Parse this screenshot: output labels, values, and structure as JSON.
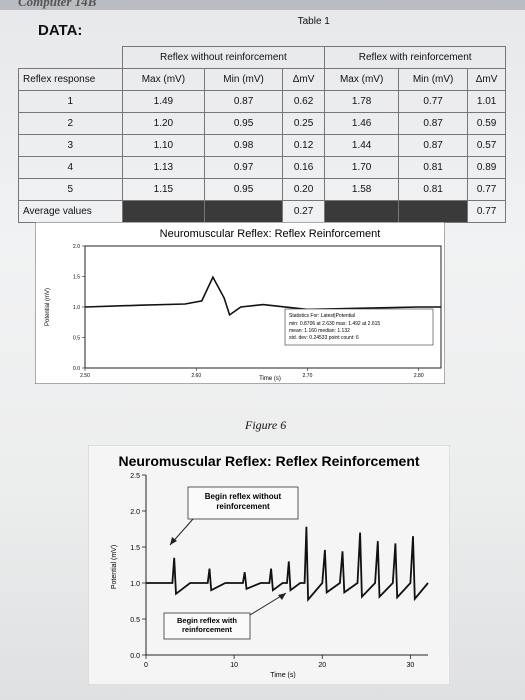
{
  "header": {
    "partial_title": "Computer 14B"
  },
  "data_label": "DATA:",
  "table": {
    "caption": "Table 1",
    "group_without": "Reflex without reinforcement",
    "group_with": "Reflex with reinforcement",
    "col_reflex": "Reflex response",
    "col_max": "Max (mV)",
    "col_min": "Min (mV)",
    "col_delta": "ΔmV",
    "rows": [
      {
        "n": "1",
        "wo_max": "1.49",
        "wo_min": "0.87",
        "wo_d": "0.62",
        "w_max": "1.78",
        "w_min": "0.77",
        "w_d": "1.01"
      },
      {
        "n": "2",
        "wo_max": "1.20",
        "wo_min": "0.95",
        "wo_d": "0.25",
        "w_max": "1.46",
        "w_min": "0.87",
        "w_d": "0.59"
      },
      {
        "n": "3",
        "wo_max": "1.10",
        "wo_min": "0.98",
        "wo_d": "0.12",
        "w_max": "1.44",
        "w_min": "0.87",
        "w_d": "0.57"
      },
      {
        "n": "4",
        "wo_max": "1.13",
        "wo_min": "0.97",
        "wo_d": "0.16",
        "w_max": "1.70",
        "w_min": "0.81",
        "w_d": "0.89"
      },
      {
        "n": "5",
        "wo_max": "1.15",
        "wo_min": "0.95",
        "wo_d": "0.20",
        "w_max": "1.58",
        "w_min": "0.81",
        "w_d": "0.77"
      }
    ],
    "avg_label": "Average values",
    "avg_wo_d": "0.27",
    "avg_w_d": "0.77"
  },
  "chart1": {
    "title": "Neuromuscular Reflex: Reflex Reinforcement",
    "ylabel": "Potential (mV)",
    "xlabel": "Time (s)",
    "yticks": [
      "0.0",
      "0.5",
      "1.0",
      "1.5",
      "2.0"
    ],
    "xticks": [
      "2.50",
      "2.60",
      "2.70",
      "2.80"
    ],
    "stats_title": "Statistics For: Latest|Potential",
    "stats_line1": "min: 0.8706 at 2.630  max: 1.492 at 2.615",
    "stats_line2": "mean: 1.160  median: 1.132",
    "stats_line3": "std. dev: 0.24533  point count: 6"
  },
  "figure_caption": "Figure 6",
  "chart2": {
    "title": "Neuromuscular Reflex: Reflex Reinforcement",
    "ylabel": "Potential (mV)",
    "xlabel": "Time (s)",
    "yticks": [
      "0.0",
      "0.5",
      "1.0",
      "1.5",
      "2.0",
      "2.5"
    ],
    "xticks": [
      "0",
      "10",
      "20",
      "30"
    ],
    "annot_without": "Begin reflex without reinforcement",
    "annot_with": "Begin reflex with reinforcement"
  },
  "chart_data": [
    {
      "type": "line",
      "title": "Neuromuscular Reflex: Reflex Reinforcement",
      "xlabel": "Time (s)",
      "ylabel": "Potential (mV)",
      "xlim": [
        2.5,
        2.82
      ],
      "ylim": [
        0.0,
        2.0
      ],
      "series": [
        {
          "x": [
            2.5,
            2.55,
            2.59,
            2.605,
            2.615,
            2.625,
            2.63,
            2.64,
            2.66,
            2.7,
            2.75,
            2.8,
            2.82
          ],
          "y": [
            1.0,
            1.03,
            1.05,
            1.1,
            1.49,
            1.15,
            0.87,
            1.0,
            1.04,
            0.96,
            0.98,
            1.0,
            1.0
          ]
        }
      ]
    },
    {
      "type": "line",
      "title": "Neuromuscular Reflex: Reflex Reinforcement",
      "xlabel": "Time (s)",
      "ylabel": "Potential (mV)",
      "xlim": [
        0,
        32
      ],
      "ylim": [
        0.0,
        2.5
      ],
      "series": [
        {
          "x": [
            0,
            2,
            3,
            3.2,
            3.4,
            5,
            7,
            7.2,
            7.4,
            9,
            11,
            11.2,
            11.4,
            13,
            14,
            14.2,
            14.4,
            15.5,
            16,
            16.2,
            16.4,
            17.5,
            18,
            18.2,
            18.4,
            20,
            20.3,
            20.5,
            22,
            22.3,
            22.5,
            24,
            24.3,
            24.5,
            26,
            26.3,
            26.5,
            28,
            28.3,
            28.5,
            30,
            30.3,
            30.5,
            32
          ],
          "y": [
            1.0,
            1.0,
            1.0,
            1.35,
            0.85,
            1.0,
            1.0,
            1.2,
            0.9,
            1.0,
            1.0,
            1.15,
            0.92,
            1.0,
            1.0,
            1.2,
            0.9,
            1.0,
            1.0,
            1.3,
            0.9,
            1.0,
            1.0,
            1.78,
            0.77,
            1.0,
            1.46,
            0.87,
            1.0,
            1.44,
            0.87,
            1.0,
            1.7,
            0.81,
            1.0,
            1.58,
            0.81,
            1.0,
            1.55,
            0.8,
            1.0,
            1.65,
            0.78,
            1.0
          ]
        }
      ]
    }
  ]
}
